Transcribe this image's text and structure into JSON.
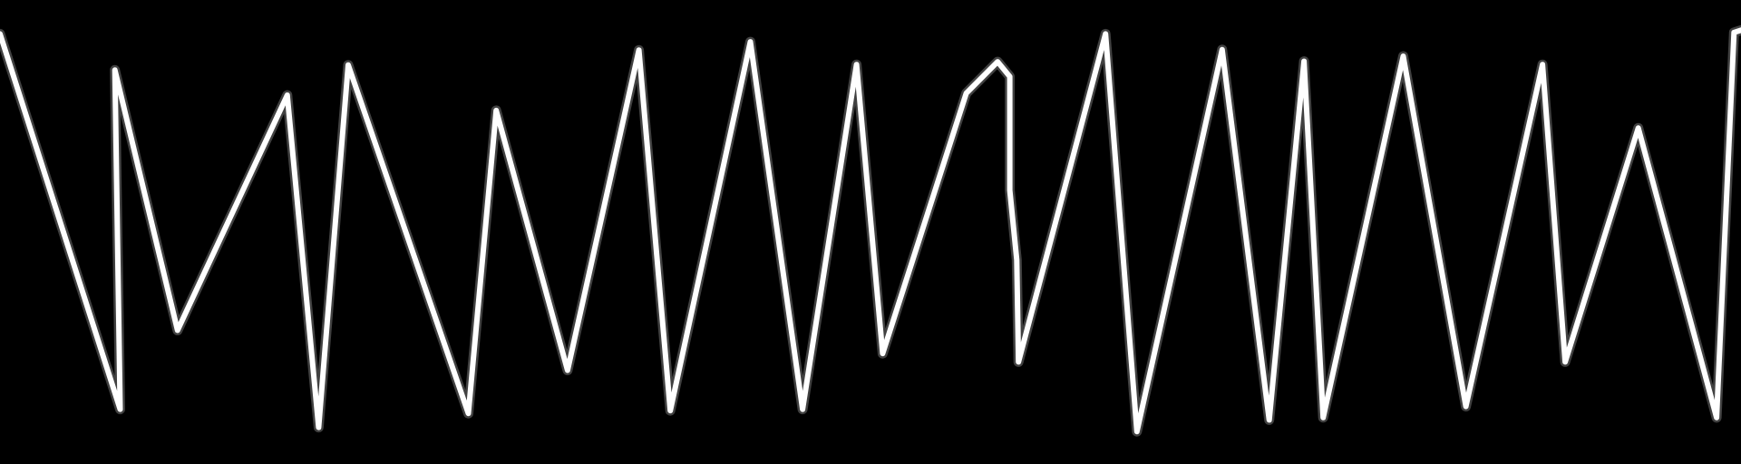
{
  "colors": {
    "background": "#000000",
    "line": "#ffffff",
    "glow": "#bbbbbb"
  },
  "waveform": {
    "description_none": "",
    "points": [
      [
        0.0,
        0.073
      ],
      [
        0.069,
        0.882
      ],
      [
        0.066,
        0.151
      ],
      [
        0.102,
        0.712
      ],
      [
        0.165,
        0.205
      ],
      [
        0.183,
        0.921
      ],
      [
        0.2,
        0.14
      ],
      [
        0.269,
        0.891
      ],
      [
        0.285,
        0.238
      ],
      [
        0.326,
        0.798
      ],
      [
        0.367,
        0.108
      ],
      [
        0.385,
        0.885
      ],
      [
        0.431,
        0.09
      ],
      [
        0.461,
        0.882
      ],
      [
        0.492,
        0.139
      ],
      [
        0.507,
        0.762
      ],
      [
        0.555,
        0.201
      ],
      [
        0.573,
        0.133
      ],
      [
        0.58,
        0.165
      ],
      [
        0.58,
        0.41
      ],
      [
        0.584,
        0.56
      ],
      [
        0.585,
        0.78
      ],
      [
        0.635,
        0.073
      ],
      [
        0.653,
        0.93
      ],
      [
        0.702,
        0.107
      ],
      [
        0.729,
        0.905
      ],
      [
        0.749,
        0.132
      ],
      [
        0.76,
        0.9
      ],
      [
        0.806,
        0.121
      ],
      [
        0.842,
        0.876
      ],
      [
        0.886,
        0.139
      ],
      [
        0.899,
        0.78
      ],
      [
        0.941,
        0.276
      ],
      [
        0.986,
        0.9
      ],
      [
        0.996,
        0.07
      ],
      [
        1.0,
        0.065
      ]
    ]
  }
}
